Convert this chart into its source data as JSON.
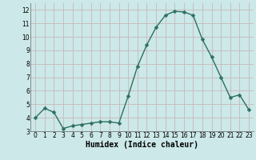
{
  "x": [
    0,
    1,
    2,
    3,
    4,
    5,
    6,
    7,
    8,
    9,
    10,
    11,
    12,
    13,
    14,
    15,
    16,
    17,
    18,
    19,
    20,
    21,
    22,
    23
  ],
  "y": [
    4.0,
    4.7,
    4.4,
    3.2,
    3.4,
    3.5,
    3.6,
    3.7,
    3.7,
    3.6,
    5.6,
    7.8,
    9.4,
    10.7,
    11.6,
    11.9,
    11.85,
    11.6,
    9.8,
    8.5,
    7.0,
    5.5,
    5.7,
    4.6
  ],
  "line_color": "#2d7060",
  "marker": "D",
  "markersize": 2.5,
  "linewidth": 1.0,
  "bg_color": "#cce8e8",
  "plot_bg_color": "#cce8e8",
  "grid_color_major": "#c8b8b8",
  "xlabel": "Humidex (Indice chaleur)",
  "xlabel_fontsize": 7,
  "xlim": [
    -0.5,
    23.5
  ],
  "ylim": [
    3,
    12.5
  ],
  "yticks": [
    3,
    4,
    5,
    6,
    7,
    8,
    9,
    10,
    11,
    12
  ],
  "xticks": [
    0,
    1,
    2,
    3,
    4,
    5,
    6,
    7,
    8,
    9,
    10,
    11,
    12,
    13,
    14,
    15,
    16,
    17,
    18,
    19,
    20,
    21,
    22,
    23
  ],
  "tick_fontsize": 5.5
}
